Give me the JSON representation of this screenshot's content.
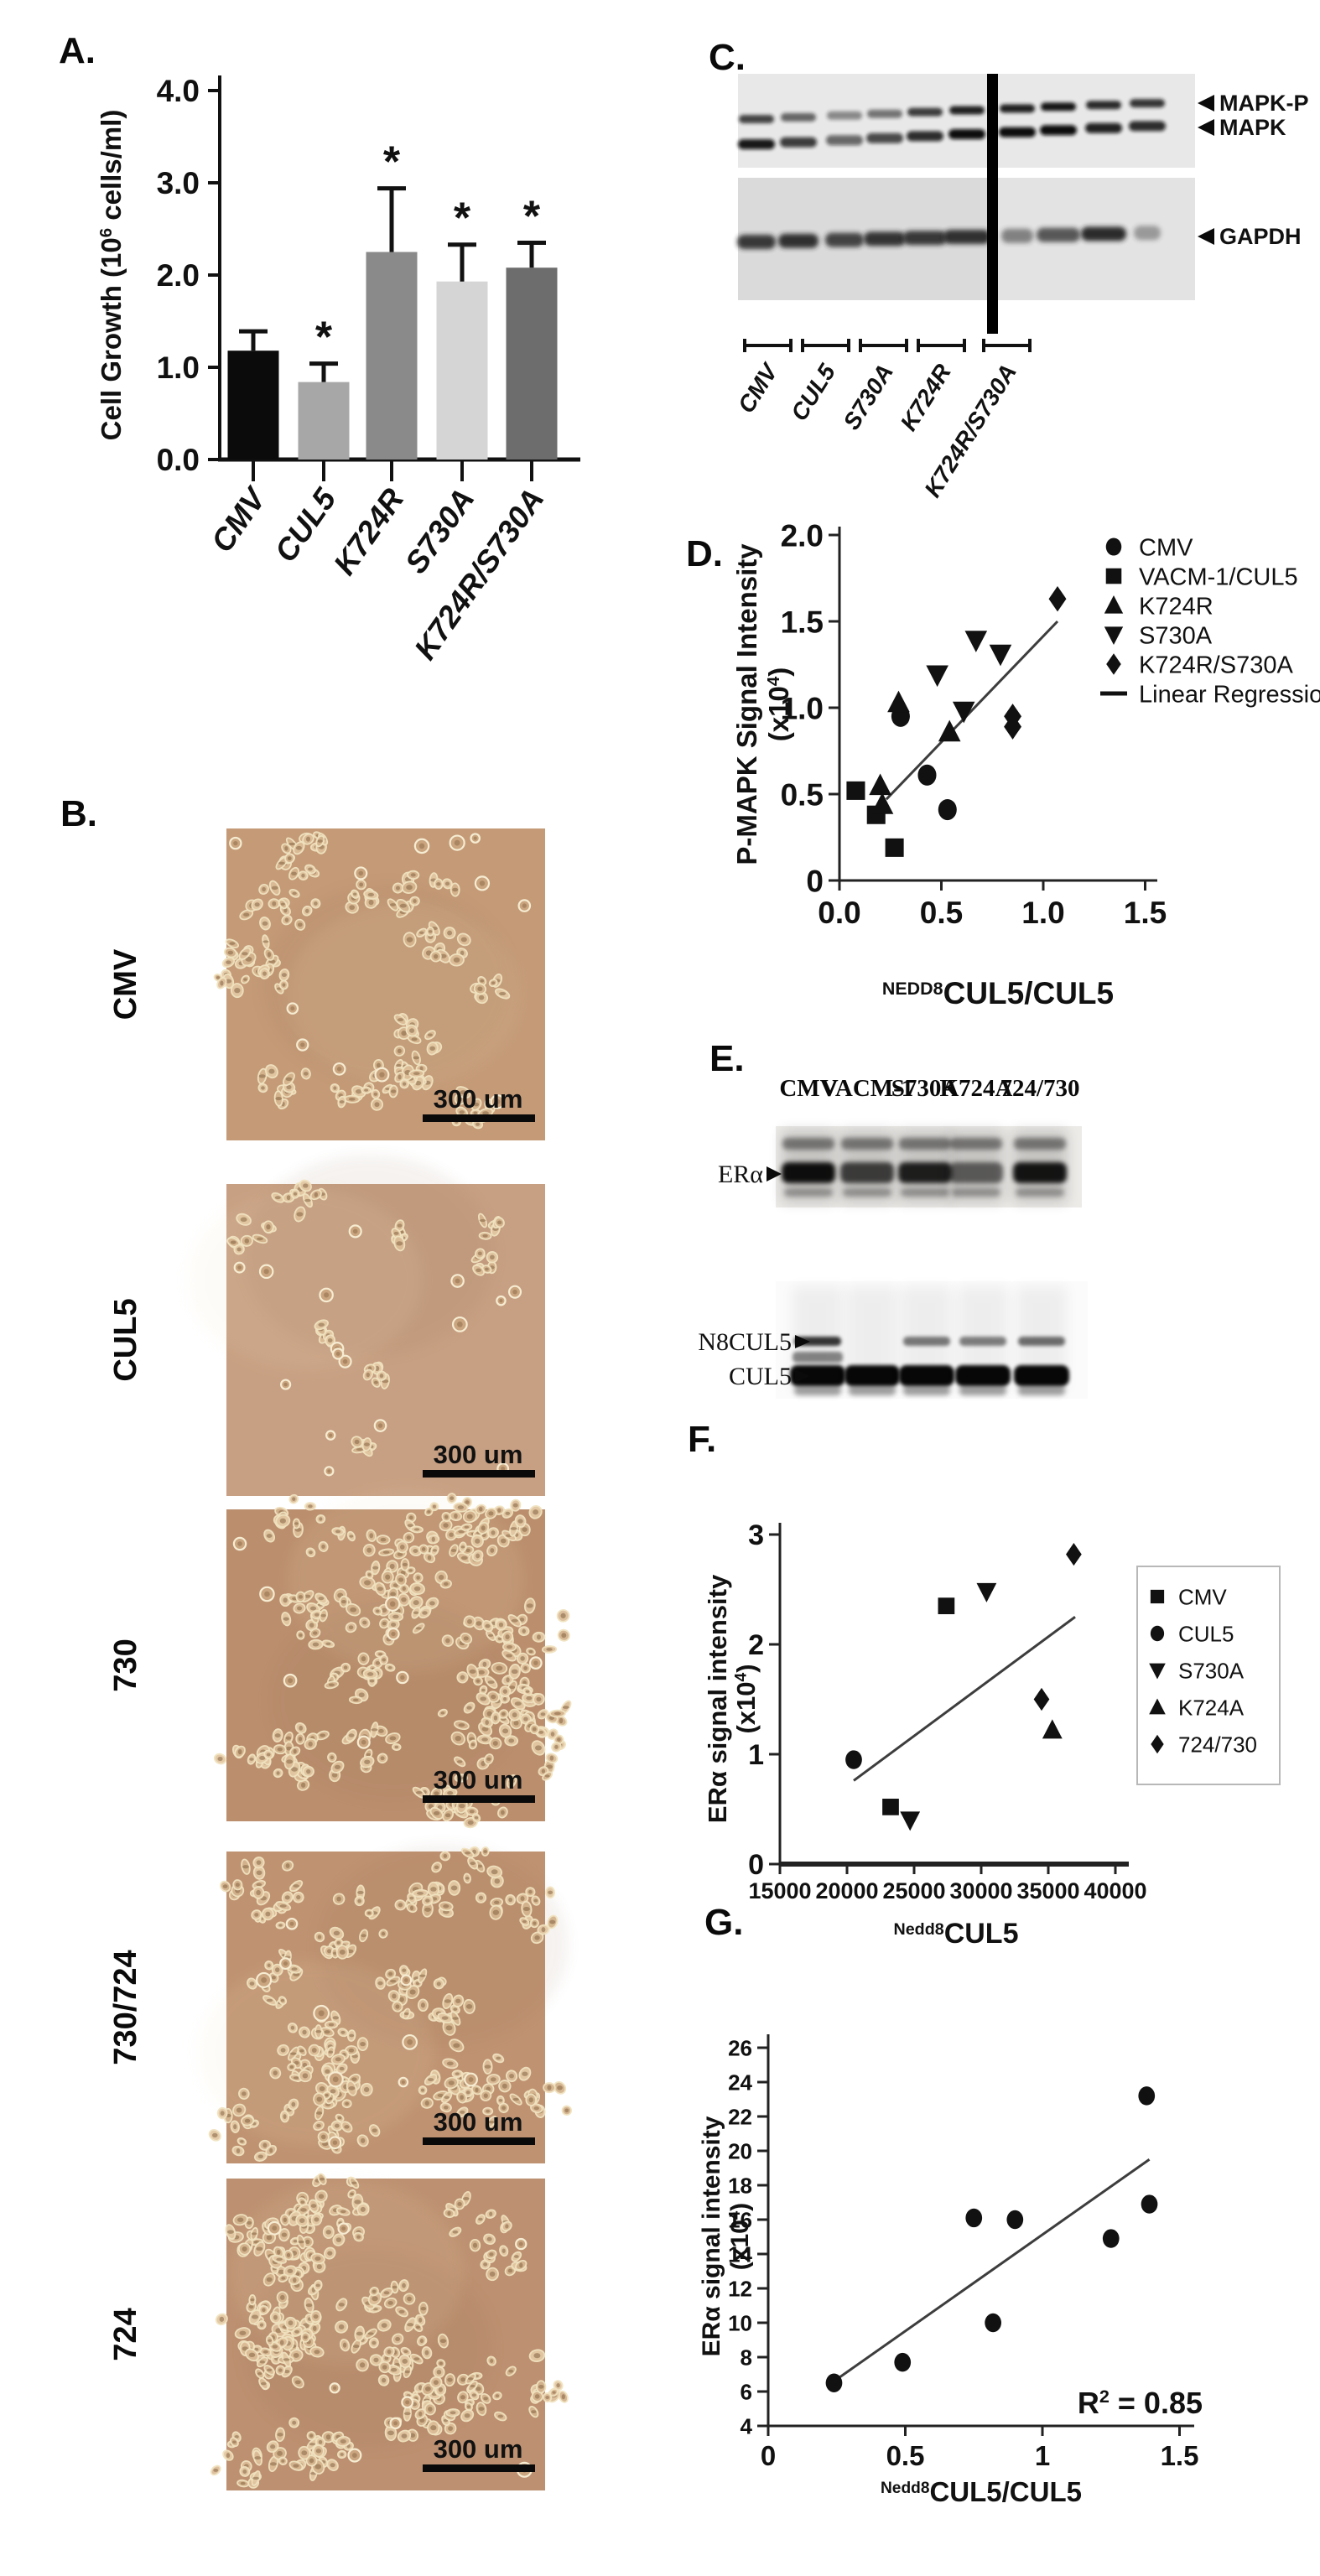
{
  "figure": {
    "panels": {
      "a": {
        "label": "A."
      },
      "b": {
        "label": "B.",
        "scale_label": "300 um",
        "images": [
          {
            "name": "CMV"
          },
          {
            "name": "CUL5"
          },
          {
            "name": "730"
          },
          {
            "name": "730/724"
          },
          {
            "name": "724"
          }
        ]
      },
      "c": {
        "label": "C.",
        "band_labels": [
          "MAPK-P",
          "MAPK",
          "GAPDH"
        ],
        "groups": [
          "CMV",
          "CUL5",
          "S730A",
          "K724R",
          "K724R/S730A"
        ]
      },
      "d": {
        "label": "D."
      },
      "e": {
        "label": "E.",
        "lane_headers": [
          "CMV",
          "VACM-1",
          "S730A",
          "K724A",
          "724/730"
        ],
        "band_labels": [
          "ERα",
          "N8CUL5",
          "CUL5"
        ]
      },
      "f": {
        "label": "F."
      },
      "g": {
        "label": "G."
      }
    }
  },
  "chart_data": [
    {
      "id": "A",
      "type": "bar",
      "ylabel": "Cell Growth (10⁶ cells/ml)",
      "ylabel_parts": [
        "Cell Growth (10",
        "6",
        " cells/ml)"
      ],
      "categories": [
        "CMV",
        "CUL5",
        "K724R",
        "S730A",
        "K724R/S730A"
      ],
      "values": [
        1.18,
        0.84,
        2.25,
        1.93,
        2.08
      ],
      "errors_plus": [
        0.21,
        0.2,
        0.69,
        0.4,
        0.27
      ],
      "significance": [
        "",
        "*",
        "*",
        "*",
        "*"
      ],
      "bar_colors": [
        "#0b0b0b",
        "#a7a7a7",
        "#8a8a8a",
        "#d5d5d5",
        "#6d6d6d"
      ],
      "ylim": [
        0,
        4
      ],
      "yticks": [
        "0.0",
        "1.0",
        "2.0",
        "3.0",
        "4.0"
      ],
      "grid": false
    },
    {
      "id": "D",
      "type": "scatter",
      "ylabel": "P-MAPK Signal Intensity",
      "ylabel2": "(x10⁴)",
      "ylabel2_parts": [
        "(x10",
        "4",
        ")"
      ],
      "xlabel_sup": "NEDD8",
      "xlabel_main": "CUL5/CUL5",
      "xlim": [
        0,
        1.5
      ],
      "xticks": [
        "0.0",
        "0.5",
        "1.0",
        "1.5"
      ],
      "ylim": [
        0,
        2
      ],
      "yticks": [
        "0",
        "0.5",
        "1.0",
        "1.5",
        "2.0"
      ],
      "legend_position": "right",
      "series": [
        {
          "name": "CMV",
          "marker": "circle",
          "points": [
            [
              0.3,
              0.95
            ],
            [
              0.43,
              0.61
            ],
            [
              0.53,
              0.41
            ]
          ]
        },
        {
          "name": "VACM-1/CUL5",
          "marker": "square",
          "points": [
            [
              0.08,
              0.52
            ],
            [
              0.18,
              0.38
            ],
            [
              0.27,
              0.19
            ]
          ]
        },
        {
          "name": "K724R",
          "marker": "triangle-up",
          "points": [
            [
              0.2,
              0.55
            ],
            [
              0.21,
              0.44
            ],
            [
              0.29,
              1.03
            ],
            [
              0.54,
              0.86
            ]
          ]
        },
        {
          "name": "S730A",
          "marker": "triangle-down",
          "points": [
            [
              0.48,
              1.19
            ],
            [
              0.61,
              0.98
            ],
            [
              0.67,
              1.39
            ],
            [
              0.79,
              1.31
            ]
          ]
        },
        {
          "name": "K724R/S730A",
          "marker": "diamond",
          "points": [
            [
              0.85,
              0.95
            ],
            [
              0.85,
              0.89
            ],
            [
              1.07,
              1.63
            ]
          ]
        }
      ],
      "regression": {
        "label": "Linear Regression",
        "x1": 0.23,
        "y1": 0.47,
        "x2": 1.07,
        "y2": 1.5
      }
    },
    {
      "id": "F",
      "type": "scatter",
      "ylabel": "ERα signal intensity",
      "ylabel2": "(x10⁴)",
      "ylabel2_parts": [
        "(x10",
        "4",
        ")"
      ],
      "xlabel_sup": "Nedd8",
      "xlabel_main": "CUL5",
      "xlim": [
        15000,
        40000
      ],
      "xticks": [
        "15000",
        "20000",
        "25000",
        "30000",
        "35000",
        "40000"
      ],
      "ylim": [
        0,
        3
      ],
      "yticks": [
        "0",
        "1",
        "2",
        "3"
      ],
      "legend_position": "right-box",
      "series": [
        {
          "name": "CMV",
          "marker": "square",
          "points": [
            [
              27400,
              2.35
            ],
            [
              23250,
              0.52
            ]
          ]
        },
        {
          "name": "CUL5",
          "marker": "circle",
          "points": [
            [
              20500,
              0.95
            ]
          ]
        },
        {
          "name": "S730A",
          "marker": "triangle-down",
          "points": [
            [
              30400,
              2.48
            ],
            [
              24700,
              0.4
            ]
          ]
        },
        {
          "name": "K724A",
          "marker": "triangle-up",
          "points": [
            [
              35300,
              1.22
            ]
          ]
        },
        {
          "name": "724/730",
          "marker": "diamond",
          "points": [
            [
              36900,
              2.82
            ],
            [
              34500,
              1.5
            ]
          ]
        }
      ],
      "regression": {
        "x1": 20500,
        "y1": 0.76,
        "x2": 37000,
        "y2": 2.25
      }
    },
    {
      "id": "G",
      "type": "scatter",
      "ylabel": "ERα signal intensity",
      "ylabel2": "(x10⁴)",
      "ylabel2_parts": [
        "(x10",
        "4",
        ")"
      ],
      "xlabel_sup": "Nedd8",
      "xlabel_main": "CUL5/CUL5",
      "xlim": [
        0,
        1.5
      ],
      "xticks": [
        "0",
        "0.5",
        "1",
        "1.5"
      ],
      "ylim": [
        4,
        26
      ],
      "yticks": [
        "4",
        "6",
        "8",
        "10",
        "12",
        "14",
        "16",
        "18",
        "20",
        "22",
        "24",
        "26"
      ],
      "annotation": "R² = 0.85",
      "annotation_parts": [
        "R",
        "2",
        " = 0.85"
      ],
      "series": [
        {
          "name": "",
          "marker": "circle",
          "points": [
            [
              0.24,
              6.5
            ],
            [
              0.49,
              7.7
            ],
            [
              0.75,
              16.1
            ],
            [
              0.82,
              10.0
            ],
            [
              0.9,
              16.0
            ],
            [
              1.25,
              14.9
            ],
            [
              1.38,
              23.2
            ],
            [
              1.39,
              16.9
            ]
          ]
        }
      ],
      "regression": {
        "x1": 0.24,
        "y1": 6.6,
        "x2": 1.39,
        "y2": 19.5
      }
    }
  ]
}
